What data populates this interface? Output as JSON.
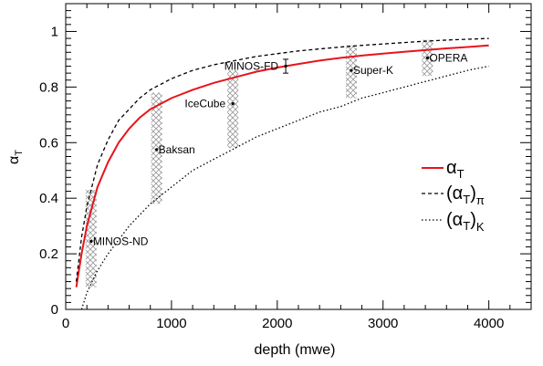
{
  "chart_data": {
    "type": "line",
    "title": "",
    "xlabel": "depth (mwe)",
    "ylabel_main": "α",
    "ylabel_sub": "T",
    "xlim": [
      0,
      4400
    ],
    "ylim": [
      0,
      1.1
    ],
    "xticks": [
      0,
      1000,
      2000,
      3000,
      4000
    ],
    "yticks": [
      0,
      0.2,
      0.4,
      0.6,
      0.8,
      1
    ],
    "xtick_labels": [
      "0",
      "1000",
      "2000",
      "3000",
      "4000"
    ],
    "ytick_labels": [
      "0",
      "0.2",
      "0.4",
      "0.6",
      "0.8",
      "1"
    ],
    "grid": false,
    "legend_position": "right",
    "series": [
      {
        "name_main": "α",
        "name_sub": "T",
        "name_wrap": false,
        "style": "solid",
        "color": "#e8141b",
        "x": [
          100,
          150,
          200,
          300,
          400,
          500,
          600,
          700,
          800,
          900,
          1000,
          1200,
          1400,
          1600,
          1800,
          2000,
          2200,
          2400,
          2600,
          2800,
          3000,
          3200,
          3400,
          3600,
          3800,
          4000
        ],
        "y": [
          0.08,
          0.2,
          0.3,
          0.44,
          0.53,
          0.6,
          0.65,
          0.69,
          0.72,
          0.74,
          0.76,
          0.79,
          0.815,
          0.835,
          0.855,
          0.87,
          0.883,
          0.895,
          0.905,
          0.913,
          0.92,
          0.927,
          0.933,
          0.939,
          0.944,
          0.95
        ]
      },
      {
        "name_main": "α",
        "name_sub": "T",
        "name_subscript2": "π",
        "name_wrap": true,
        "style": "dashed",
        "color": "#000000",
        "x": [
          100,
          150,
          200,
          300,
          400,
          500,
          600,
          700,
          800,
          900,
          1000,
          1200,
          1400,
          1600,
          1800,
          2000,
          2200,
          2400,
          2600,
          2800,
          3000,
          3200,
          3400,
          3600,
          3800,
          4000
        ],
        "y": [
          0.1,
          0.26,
          0.37,
          0.52,
          0.61,
          0.68,
          0.72,
          0.76,
          0.79,
          0.81,
          0.83,
          0.86,
          0.88,
          0.895,
          0.91,
          0.92,
          0.93,
          0.937,
          0.944,
          0.95,
          0.955,
          0.96,
          0.965,
          0.969,
          0.972,
          0.975
        ]
      },
      {
        "name_main": "α",
        "name_sub": "T",
        "name_subscript2": "K",
        "name_wrap": true,
        "style": "dotted",
        "color": "#000000",
        "x": [
          150,
          200,
          300,
          400,
          500,
          600,
          700,
          800,
          900,
          1000,
          1200,
          1400,
          1600,
          1800,
          2000,
          2200,
          2400,
          2600,
          2800,
          3000,
          3200,
          3400,
          3600,
          3800,
          4000
        ],
        "y": [
          0.0,
          0.06,
          0.14,
          0.2,
          0.25,
          0.3,
          0.34,
          0.38,
          0.41,
          0.44,
          0.5,
          0.54,
          0.58,
          0.62,
          0.65,
          0.68,
          0.71,
          0.73,
          0.76,
          0.78,
          0.8,
          0.82,
          0.84,
          0.86,
          0.875
        ]
      }
    ],
    "bands": [
      {
        "x": 240,
        "ylow": 0.08,
        "yhigh": 0.43
      },
      {
        "x": 860,
        "ylow": 0.38,
        "yhigh": 0.78
      },
      {
        "x": 1580,
        "ylow": 0.58,
        "yhigh": 0.86
      },
      {
        "x": 2700,
        "ylow": 0.76,
        "yhigh": 0.95
      },
      {
        "x": 3420,
        "ylow": 0.84,
        "yhigh": 0.97
      }
    ],
    "points": [
      {
        "label": "MINOS-ND",
        "x": 240,
        "y": 0.245,
        "label_side": "right"
      },
      {
        "label": "Baksan",
        "x": 860,
        "y": 0.575,
        "label_side": "right"
      },
      {
        "label": "IceCube",
        "x": 1580,
        "y": 0.74,
        "label_side": "left"
      },
      {
        "label": "MINOS-FD",
        "x": 2080,
        "y": 0.875,
        "label_side": "left",
        "error": 0.025
      },
      {
        "label": "Super-K",
        "x": 2700,
        "y": 0.86,
        "label_side": "right"
      },
      {
        "label": "OPERA",
        "x": 3420,
        "y": 0.905,
        "label_side": "right"
      }
    ]
  }
}
